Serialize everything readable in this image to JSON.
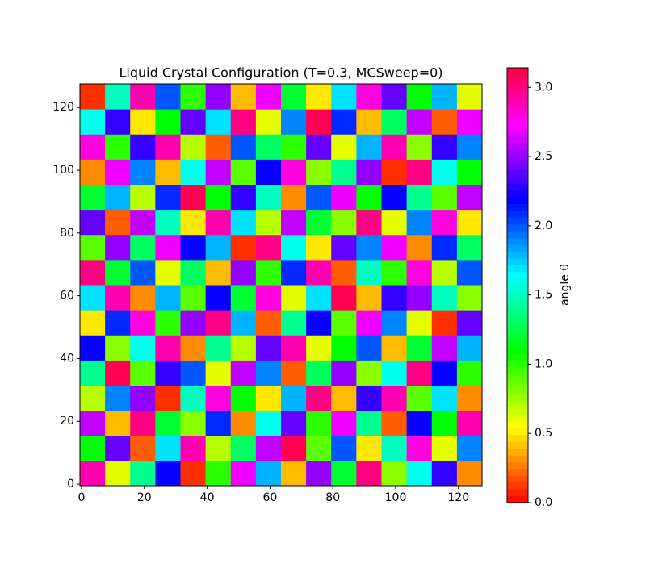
{
  "chart_data": {
    "type": "heatmap",
    "title": "Liquid Crystal Configuration (T=0.3, MCSweep=0)",
    "colormap": "hsv",
    "colorbar_label": "angle θ",
    "clim": [
      0,
      3.14159
    ],
    "colorbar_ticks": [
      {
        "value": 0,
        "label": "0.0"
      },
      {
        "value": 0.5,
        "label": "0.5"
      },
      {
        "value": 1,
        "label": "1.0"
      },
      {
        "value": 1.5,
        "label": "1.5"
      },
      {
        "value": 2,
        "label": "2.0"
      },
      {
        "value": 2.5,
        "label": "2.5"
      },
      {
        "value": 3,
        "label": "3.0"
      }
    ],
    "xlim": [
      -0.5,
      127.5
    ],
    "ylim": [
      -0.5,
      127.5
    ],
    "xticks": [
      0,
      20,
      40,
      60,
      80,
      100,
      120
    ],
    "yticks": [
      0,
      20,
      40,
      60,
      80,
      100,
      120
    ],
    "z": [
      [
        2.9,
        0.6,
        1.4,
        2.2,
        0.1,
        1.0,
        2.7,
        1.8,
        0.4,
        2.5,
        1.2,
        3.0,
        0.8,
        1.6,
        2.3,
        0.3
      ],
      [
        1.1,
        2.4,
        0.2,
        1.7,
        2.9,
        0.7,
        1.3,
        2.6,
        3.1,
        0.9,
        2.0,
        0.5,
        1.5,
        2.8,
        0.6,
        1.9
      ],
      [
        2.6,
        0.4,
        3.0,
        1.2,
        0.8,
        2.1,
        0.3,
        1.6,
        2.4,
        1.0,
        2.7,
        1.4,
        0.2,
        2.2,
        1.1,
        2.9
      ],
      [
        0.7,
        1.9,
        2.5,
        0.1,
        1.5,
        2.8,
        1.1,
        0.5,
        1.8,
        3.0,
        0.4,
        2.3,
        2.9,
        0.9,
        1.7,
        0.3
      ],
      [
        1.4,
        3.1,
        0.9,
        2.3,
        2.0,
        0.6,
        2.6,
        1.9,
        0.2,
        1.3,
        2.5,
        0.8,
        1.6,
        3.0,
        2.2,
        1.0
      ],
      [
        2.2,
        0.8,
        1.6,
        2.9,
        0.3,
        1.4,
        0.7,
        2.4,
        2.9,
        0.6,
        1.1,
        2.0,
        0.4,
        1.2,
        2.6,
        1.8
      ],
      [
        0.5,
        2.1,
        2.8,
        1.0,
        2.5,
        3.0,
        1.8,
        0.2,
        1.4,
        2.2,
        0.9,
        2.7,
        1.9,
        0.6,
        0.1,
        2.4
      ],
      [
        1.7,
        2.9,
        0.3,
        1.8,
        0.9,
        2.2,
        1.2,
        2.8,
        0.6,
        1.7,
        3.1,
        0.4,
        2.3,
        2.5,
        1.5,
        0.8
      ],
      [
        3.0,
        1.2,
        2.0,
        0.6,
        1.3,
        0.4,
        2.5,
        1.0,
        2.1,
        2.9,
        0.2,
        1.5,
        1.0,
        2.8,
        0.7,
        2.0
      ],
      [
        0.9,
        2.5,
        1.3,
        2.7,
        2.2,
        1.8,
        0.1,
        3.0,
        1.6,
        0.5,
        2.4,
        1.9,
        2.7,
        0.3,
        2.1,
        1.3
      ],
      [
        2.4,
        0.2,
        2.6,
        1.5,
        0.5,
        2.9,
        1.7,
        0.7,
        2.6,
        1.2,
        0.8,
        3.0,
        0.6,
        1.9,
        2.8,
        0.5
      ],
      [
        1.2,
        1.8,
        0.7,
        2.1,
        3.1,
        1.1,
        2.3,
        1.5,
        0.3,
        2.0,
        2.7,
        1.1,
        2.2,
        1.4,
        0.9,
        2.6
      ],
      [
        0.3,
        2.7,
        1.9,
        0.4,
        1.6,
        2.6,
        0.9,
        2.2,
        2.8,
        0.8,
        1.4,
        2.5,
        0.1,
        3.0,
        1.6,
        1.1
      ],
      [
        2.8,
        1.0,
        2.3,
        2.9,
        0.7,
        0.2,
        2.0,
        1.3,
        1.0,
        2.4,
        0.6,
        1.8,
        2.9,
        0.8,
        2.3,
        1.9
      ],
      [
        1.6,
        2.3,
        0.5,
        1.1,
        2.4,
        1.7,
        3.0,
        0.6,
        1.9,
        3.1,
        2.1,
        0.4,
        1.3,
        2.6,
        0.2,
        2.7
      ],
      [
        0.1,
        1.5,
        2.9,
        2.0,
        1.0,
        2.5,
        0.4,
        2.7,
        1.2,
        0.5,
        1.7,
        2.8,
        2.4,
        1.1,
        1.8,
        0.6
      ]
    ]
  }
}
